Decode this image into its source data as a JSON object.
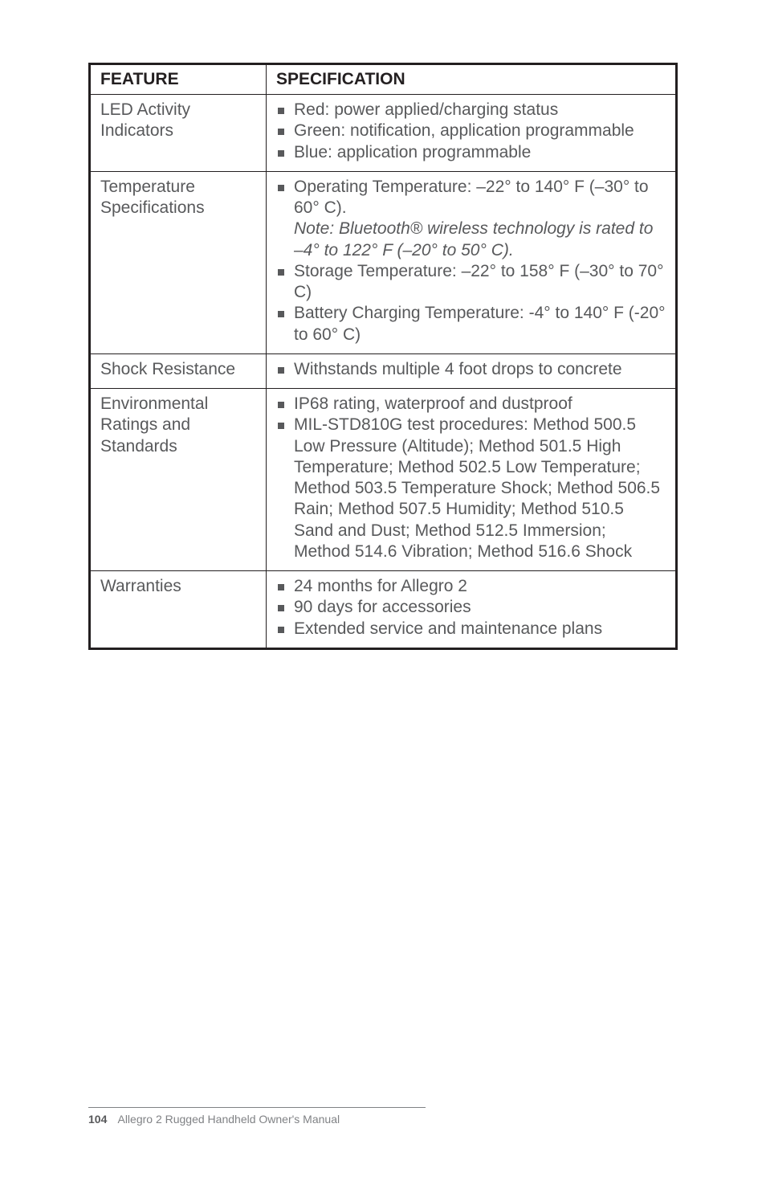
{
  "table": {
    "headers": {
      "feature": "FEATURE",
      "spec": "SPECIFICATION"
    },
    "rows": [
      {
        "feature": "LED Activity Indicators",
        "bullets": [
          {
            "text": "Red: power applied/charging status"
          },
          {
            "text": "Green: notification, application programmable"
          },
          {
            "text": "Blue: application programmable"
          }
        ]
      },
      {
        "feature": "Temperature Specifications",
        "bullets": [
          {
            "text": "Operating Temperature:  –22° to 140° F (–30° to 60° C).",
            "note_italic": "Note: Bluetooth® wireless technology is rated to –4° to 122° F (–20° to 50° C)."
          },
          {
            "text": "Storage Temperature: –22° to 158° F (–30° to 70° C)"
          },
          {
            "text": "Battery Charging Temperature: -4° to 140° F (-20° to 60° C)"
          }
        ]
      },
      {
        "feature": "Shock Resistance",
        "bullets": [
          {
            "text": "Withstands multiple 4 foot drops to concrete"
          }
        ]
      },
      {
        "feature": "Environmental Ratings and Standards",
        "bullets": [
          {
            "text": "IP68 rating, waterproof and dustproof"
          },
          {
            "text": "MIL-STD810G test procedures: Method 500.5 Low Pressure (Altitude); Method 501.5 High Temperature; Method 502.5 Low Temperature; Method 503.5 Temperature Shock; Method 506.5 Rain; Method 507.5 Humidity; Method 510.5 Sand and Dust; Method 512.5 Immersion; Method 514.6 Vibration; Method 516.6 Shock"
          }
        ]
      },
      {
        "feature": "Warranties",
        "bullets": [
          {
            "text": "24 months for Allegro 2"
          },
          {
            "text": "90 days for accessories"
          },
          {
            "text": "Extended service and maintenance plans"
          }
        ]
      }
    ]
  },
  "footer": {
    "page": "104",
    "title": "Allegro 2 Rugged Handheld Owner's Manual"
  }
}
